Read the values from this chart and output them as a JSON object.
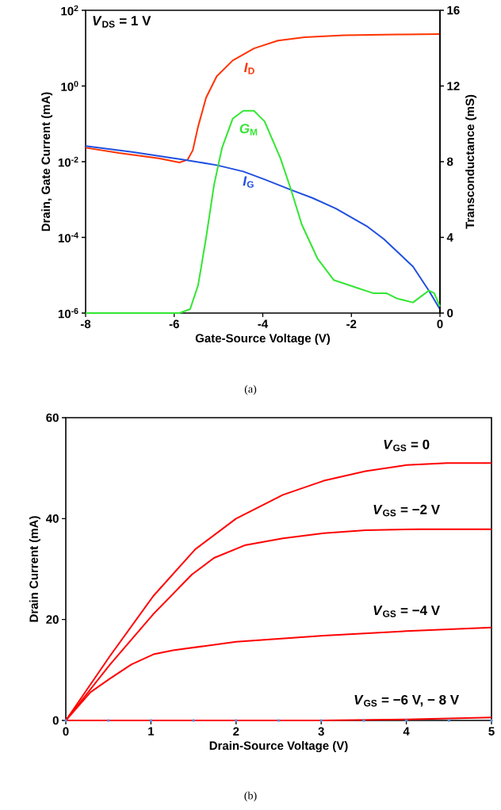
{
  "chart_data": [
    {
      "type": "line",
      "xlabel": "Gate-Source Voltage (V)",
      "ylabel": "Drain, Gate Current (mA)",
      "y2label": "Transconductance (mS)",
      "log": "y",
      "annotations": [
        "*V*$_{DS}$ = 1 V",
        "(a)"
      ],
      "xlim": [
        -8,
        0
      ],
      "xticks": [
        -8,
        -6,
        -4,
        -2,
        0
      ],
      "ylim": [
        1e-06,
        100
      ],
      "yticks": [
        {
          "value": 1e-06,
          "label": "10$^{-6}$"
        },
        {
          "value": 0.0001,
          "label": "10$^{-4}$"
        },
        {
          "value": 0.01,
          "label": "10$^{-2}$"
        },
        {
          "value": 1,
          "label": "10$^{0}$"
        },
        {
          "value": 100,
          "label": "10$^{2}$"
        }
      ],
      "y2lim": [
        0,
        16
      ],
      "y2ticks": [
        0,
        4,
        8,
        12,
        16
      ],
      "series": [
        {
          "name": "*I*$_{D}$",
          "color": "#ff3300",
          "x": [
            -8,
            -7.25,
            -6.35,
            -5.88,
            -5.7,
            -5.58,
            -5.46,
            -5.28,
            -5.04,
            -4.68,
            -4.2,
            -3.66,
            -3.06,
            -2.17,
            -0.97,
            0
          ],
          "values": [
            0.0234,
            0.017,
            0.0123,
            0.0095,
            0.0112,
            0.02,
            0.085,
            0.49,
            1.8,
            4.7,
            9.8,
            15.8,
            19.5,
            21.9,
            22.9,
            23.4
          ]
        },
        {
          "name": "*G*$_{M}$",
          "color": "#33e633",
          "axis": "y2",
          "x": [
            -8,
            -5.88,
            -5.64,
            -5.46,
            -5.28,
            -5.1,
            -4.92,
            -4.68,
            -4.44,
            -4.2,
            -3.96,
            -3.6,
            -3.36,
            -3.12,
            -2.76,
            -2.4,
            -1.87,
            -1.51,
            -1.21,
            -0.97,
            -0.61,
            -0.25,
            -0.13,
            0
          ],
          "values": [
            0,
            0,
            0.21,
            1.47,
            3.98,
            6.78,
            8.73,
            10.27,
            10.69,
            10.69,
            10.13,
            8.17,
            6.5,
            4.68,
            2.86,
            1.75,
            1.33,
            1.05,
            1.05,
            0.77,
            0.56,
            1.19,
            1.05,
            0.35
          ]
        },
        {
          "name": "*I*$_{G}$",
          "color": "#1f4fe0",
          "x": [
            -8,
            -6.95,
            -5.76,
            -5.04,
            -4.44,
            -3.96,
            -3.36,
            -2.88,
            -2.35,
            -1.63,
            -1.27,
            -0.61,
            -0.25,
            0
          ],
          "values": [
            0.026,
            0.018,
            0.0112,
            0.0081,
            0.0055,
            0.0034,
            0.0018,
            0.0011,
            0.00058,
            0.00019,
            9.1e-05,
            1.7e-05,
            3.9e-06,
            1.26e-06
          ]
        }
      ]
    },
    {
      "type": "line",
      "xlabel": "Drain-Source Voltage (V)",
      "ylabel": "Drain Current (mA)",
      "annotations": [
        "(b)"
      ],
      "xlim": [
        0,
        5
      ],
      "xticks": [
        0,
        1,
        2,
        3,
        4,
        5
      ],
      "ylim": [
        0,
        60
      ],
      "yticks": [
        0,
        20,
        40,
        60
      ],
      "series": [
        {
          "name": "*V*$_{GS}$ = 0",
          "color": "#ff0000",
          "x": [
            0,
            0.52,
            1.03,
            1.52,
            2.0,
            2.55,
            3.03,
            3.52,
            4.0,
            4.48,
            5.0
          ],
          "values": [
            0,
            12.8,
            24.7,
            33.9,
            40.0,
            44.7,
            47.5,
            49.4,
            50.6,
            51.0,
            51.0
          ]
        },
        {
          "name": "*V*$_{GS}$ = −2 V",
          "color": "#ff0000",
          "x": [
            0,
            0.52,
            1.03,
            1.48,
            1.74,
            2.1,
            2.55,
            3.03,
            3.52,
            4.16,
            5.0
          ],
          "values": [
            0,
            11.1,
            21.1,
            28.9,
            32.2,
            34.7,
            36.1,
            37.1,
            37.7,
            37.9,
            37.9
          ]
        },
        {
          "name": "*V*$_{GS}$ = −4 V",
          "color": "#ff0000",
          "x": [
            0,
            0.29,
            0.52,
            0.77,
            1.03,
            1.26,
            2.0,
            3.03,
            4.0,
            5.0
          ],
          "values": [
            0,
            5.6,
            8.3,
            11.1,
            13.1,
            13.9,
            15.6,
            16.8,
            17.7,
            18.4
          ]
        },
        {
          "name": "*V*$_{GS}$ = −6 V, − 8 V",
          "color": "#ff0000",
          "x": [
            0,
            1,
            2,
            3,
            4,
            5
          ],
          "values": [
            0,
            0,
            0,
            0,
            0.2,
            0.6
          ]
        },
        {
          "type": "scatter",
          "color": "#5b8fd9",
          "x": [
            0,
            0.5,
            1,
            1.5,
            2,
            2.5,
            3,
            3.5,
            4,
            4.5,
            5
          ],
          "values": [
            0,
            0,
            0,
            0,
            0,
            0,
            0,
            0,
            0,
            0,
            0
          ]
        }
      ]
    }
  ]
}
